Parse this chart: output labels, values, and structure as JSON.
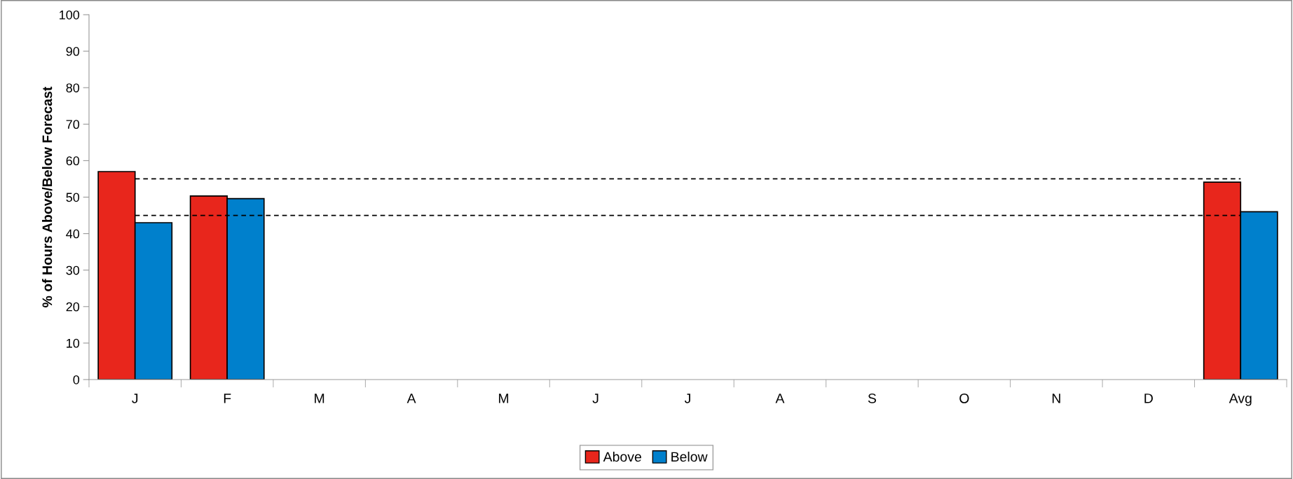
{
  "chart_data": {
    "type": "bar",
    "ylabel": "% of Hours Above/Below Forecast",
    "categories": [
      "J",
      "F",
      "M",
      "A",
      "M",
      "J",
      "J",
      "A",
      "S",
      "O",
      "N",
      "D",
      "Avg"
    ],
    "series": [
      {
        "name": "Above",
        "color": "#e8261c",
        "values": [
          57,
          50.3,
          null,
          null,
          null,
          null,
          null,
          null,
          null,
          null,
          null,
          null,
          54.1
        ]
      },
      {
        "name": "Below",
        "color": "#0080cc",
        "values": [
          43,
          49.6,
          null,
          null,
          null,
          null,
          null,
          null,
          null,
          null,
          null,
          null,
          46
        ]
      }
    ],
    "ylim": [
      0,
      100
    ],
    "yticks": [
      0,
      10,
      20,
      30,
      40,
      50,
      60,
      70,
      80,
      90,
      100
    ],
    "ref_lines": [
      {
        "axis": "y",
        "value": 55,
        "color": "#000000",
        "line_style": "dashed"
      },
      {
        "axis": "y",
        "value": 45,
        "color": "#000000",
        "line_style": "dashed"
      }
    ],
    "grid": false,
    "legend": "bottom"
  }
}
